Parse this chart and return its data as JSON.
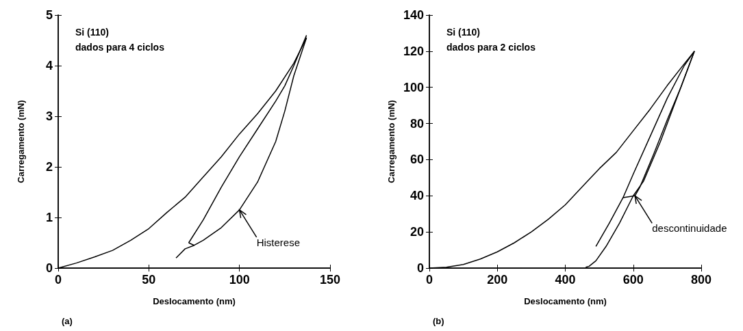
{
  "chart_data": [
    {
      "type": "line",
      "title": "(a)",
      "xlabel": "Deslocamento (nm)",
      "ylabel": "Carregamento (mN)",
      "xlim": [
        0,
        150
      ],
      "xticks": [
        0,
        50,
        100,
        150
      ],
      "ylim": [
        0,
        5
      ],
      "yticks": [
        0,
        1,
        2,
        3,
        4,
        5
      ],
      "grid": false,
      "annotations": [
        "Si (110)",
        "dados para 4 ciclos",
        {
          "text": "Histerese",
          "x": 100,
          "y": 1.15
        }
      ],
      "series": [
        {
          "color": "#000000",
          "x": [
            0,
            10,
            20,
            30,
            40,
            50,
            60,
            70,
            80,
            90,
            100,
            110,
            120,
            130,
            137
          ],
          "values": [
            0,
            0.1,
            0.22,
            0.35,
            0.55,
            0.78,
            1.1,
            1.4,
            1.8,
            2.2,
            2.65,
            3.05,
            3.5,
            4.05,
            4.55
          ]
        },
        {
          "color": "#000000",
          "x": [
            137,
            130,
            125,
            120,
            110,
            100,
            90,
            80,
            75,
            72
          ],
          "values": [
            4.55,
            3.8,
            3.1,
            2.5,
            1.7,
            1.15,
            0.8,
            0.55,
            0.45,
            0.5
          ]
        },
        {
          "color": "#000000",
          "x": [
            72,
            80,
            90,
            100,
            110,
            120,
            125,
            130,
            137
          ],
          "values": [
            0.5,
            0.95,
            1.6,
            2.2,
            2.75,
            3.3,
            3.6,
            4.0,
            4.6
          ]
        },
        {
          "color": "#000000",
          "x": [
            65,
            70,
            75
          ],
          "values": [
            0.2,
            0.38,
            0.45
          ]
        }
      ]
    },
    {
      "type": "line",
      "title": "(b)",
      "xlabel": "Deslocamento (nm)",
      "ylabel": "Carregamento (mN)",
      "xlim": [
        0,
        800
      ],
      "xticks": [
        0,
        200,
        400,
        600,
        800
      ],
      "ylim": [
        0,
        140
      ],
      "yticks": [
        0,
        20,
        40,
        60,
        80,
        100,
        120,
        140
      ],
      "grid": false,
      "annotations": [
        "Si (110)",
        "dados para 2 ciclos",
        {
          "text": "descontinuidade",
          "x": 605,
          "y": 40
        }
      ],
      "series": [
        {
          "color": "#000000",
          "x": [
            0,
            50,
            100,
            150,
            200,
            250,
            300,
            350,
            400,
            450,
            500,
            550,
            600,
            650,
            700,
            750,
            780
          ],
          "values": [
            0,
            0.5,
            2,
            5,
            9,
            14,
            20,
            27,
            35,
            45,
            55,
            64,
            76,
            88,
            101,
            113,
            120
          ]
        },
        {
          "color": "#000000",
          "x": [
            780,
            730,
            680,
            630,
            600,
            560,
            520,
            490,
            470,
            460
          ],
          "values": [
            120,
            95,
            70,
            48,
            40,
            25,
            12,
            4,
            1,
            0.5
          ]
        },
        {
          "color": "#000000",
          "x": [
            490,
            530,
            570,
            600,
            650,
            700,
            750,
            780
          ],
          "values": [
            12,
            25,
            39,
            52,
            73,
            94,
            112,
            120
          ]
        },
        {
          "color": "#000000",
          "x": [
            780,
            740,
            700,
            660,
            620,
            605,
            570
          ],
          "values": [
            120,
            100,
            82,
            63,
            45,
            40,
            39
          ]
        }
      ]
    }
  ]
}
